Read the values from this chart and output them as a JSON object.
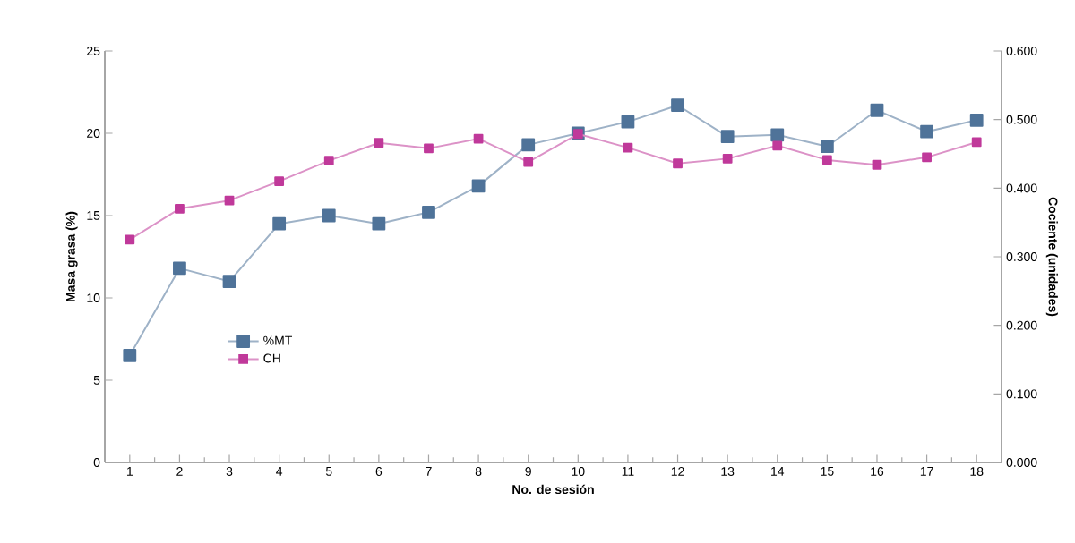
{
  "chart_data": {
    "type": "line",
    "xlabel": "No. de sesión",
    "ylabel": "Masa grasa (%)",
    "y2label": "Cociente (unidades)",
    "x": [
      1,
      2,
      3,
      4,
      5,
      6,
      7,
      8,
      9,
      10,
      11,
      12,
      13,
      14,
      15,
      16,
      17,
      18
    ],
    "xlim": [
      0.5,
      18.5
    ],
    "xticks": [
      1,
      2,
      3,
      4,
      5,
      6,
      7,
      8,
      9,
      10,
      11,
      12,
      13,
      14,
      15,
      16,
      17,
      18
    ],
    "ylim": [
      0,
      25
    ],
    "yticks": [
      0,
      5,
      10,
      15,
      20,
      25
    ],
    "y2lim": [
      0,
      0.6
    ],
    "y2ticks": [
      {
        "value": 0,
        "label": "0.000"
      },
      {
        "value": 0.1,
        "label": "0.100"
      },
      {
        "value": 0.2,
        "label": "0.200"
      },
      {
        "value": 0.3,
        "label": "0.300"
      },
      {
        "value": 0.4,
        "label": "0.400"
      },
      {
        "value": 0.5,
        "label": "0.500"
      },
      {
        "value": 0.6,
        "label": "0.600"
      }
    ],
    "series": [
      {
        "name": "%MT",
        "color": "#4f7399",
        "values": [
          6.5,
          11.8,
          11.0,
          14.5,
          15.0,
          14.5,
          15.2,
          16.8,
          19.3,
          20.0,
          20.7,
          21.7,
          19.8,
          19.9,
          19.2,
          21.4,
          20.1,
          20.8
        ]
      },
      {
        "name": "CH",
        "color": "#c0399a",
        "axis": "y2",
        "values": [
          0.325,
          0.37,
          0.382,
          0.41,
          0.44,
          0.466,
          0.458,
          0.472,
          0.438,
          0.479,
          0.459,
          0.436,
          0.443,
          0.462,
          0.441,
          0.434,
          0.445,
          0.467
        ]
      }
    ],
    "marker": "square",
    "line_style": "solid",
    "legend": "bottom left",
    "grid": false
  }
}
